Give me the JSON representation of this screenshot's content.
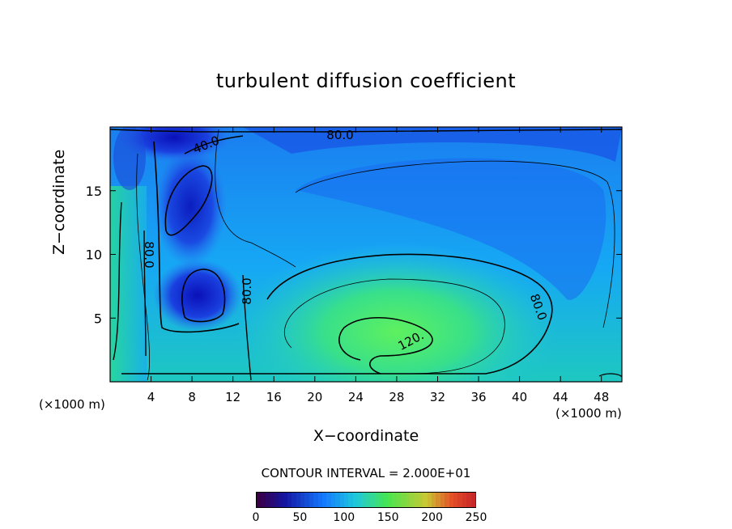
{
  "chart_data": {
    "type": "heatmap",
    "title": "turbulent diffusion coefficient",
    "xlabel": "X−coordinate",
    "ylabel": "Z−coordinate",
    "x_unit_left": "(×1000 m)",
    "x_unit_right": "(×1000 m)",
    "xlim": [
      0,
      50
    ],
    "ylim": [
      0,
      20
    ],
    "x_ticks": [
      "4",
      "8",
      "12",
      "16",
      "20",
      "24",
      "28",
      "32",
      "36",
      "40",
      "44",
      "48"
    ],
    "y_ticks": [
      "5",
      "10",
      "15"
    ],
    "contour_interval_text": "CONTOUR INTERVAL = 2.000E+01",
    "contour_interval": 20,
    "contour_labels": [
      "80.0",
      "40.0",
      "80.0",
      "80.0",
      "80.0",
      "120."
    ],
    "colorbar": {
      "min": 0,
      "max": 250,
      "ticks": [
        "0",
        "50",
        "100",
        "150",
        "200",
        "250"
      ]
    },
    "features": [
      {
        "label": "low",
        "x": 9.5,
        "z": 7.0,
        "value": 20
      },
      {
        "label": "low",
        "x": 8.5,
        "z": 14.0,
        "value": 20
      },
      {
        "label": "low",
        "x": 7.0,
        "z": 19.0,
        "value": 10
      },
      {
        "label": "high",
        "x": 24,
        "z": 3.5,
        "value": 140
      }
    ]
  },
  "colors": {
    "low": "#0a17c8",
    "mid": "#1aa0ff",
    "high": "#2ee37a",
    "contour": "#000000"
  }
}
